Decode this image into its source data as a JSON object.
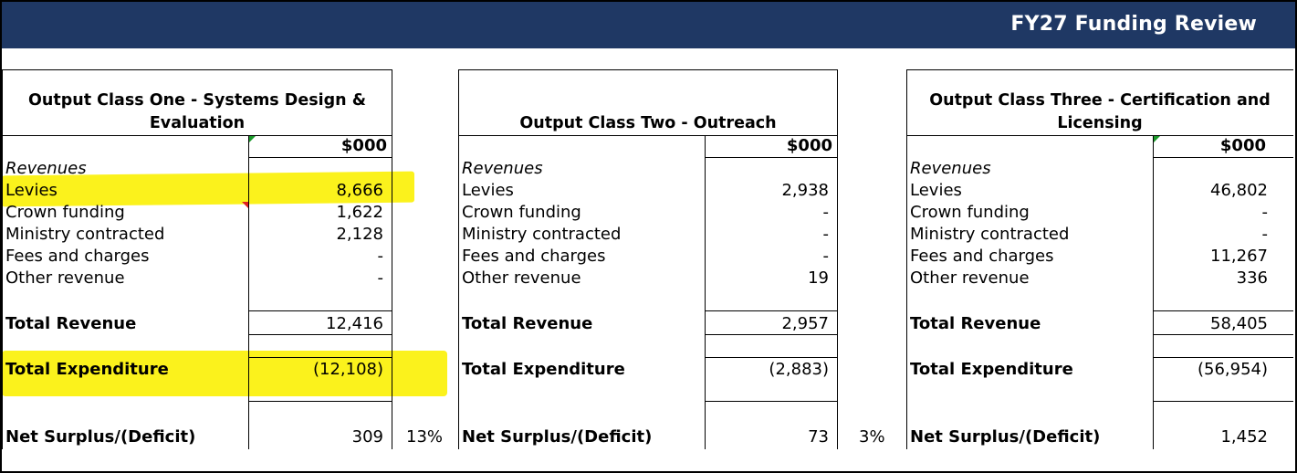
{
  "title": "FY27 Funding Review",
  "unit_label": "$000",
  "panels": [
    {
      "heading": "Output Class One - Systems Design & Evaluation",
      "revenues_label": "Revenues",
      "rows": [
        {
          "label": "Levies",
          "value": "8,666"
        },
        {
          "label": "Crown funding",
          "value": "1,622"
        },
        {
          "label": "Ministry contracted",
          "value": "2,128"
        },
        {
          "label": "Fees and charges",
          "value": "-"
        },
        {
          "label": "Other revenue",
          "value": "-"
        }
      ],
      "total_revenue": {
        "label": "Total Revenue",
        "value": "12,416"
      },
      "total_expenditure": {
        "label": "Total Expenditure",
        "value": "(12,108)"
      },
      "net": {
        "label": "Net Surplus/(Deficit)",
        "value": "309",
        "percent": "13%"
      }
    },
    {
      "heading": "Output Class Two - Outreach",
      "revenues_label": "Revenues",
      "rows": [
        {
          "label": "Levies",
          "value": "2,938"
        },
        {
          "label": "Crown funding",
          "value": "-"
        },
        {
          "label": "Ministry contracted",
          "value": "-"
        },
        {
          "label": "Fees and charges",
          "value": "-"
        },
        {
          "label": "Other revenue",
          "value": "19"
        }
      ],
      "total_revenue": {
        "label": "Total Revenue",
        "value": "2,957"
      },
      "total_expenditure": {
        "label": "Total Expenditure",
        "value": "(2,883)"
      },
      "net": {
        "label": "Net Surplus/(Deficit)",
        "value": "73",
        "percent": "3%"
      }
    },
    {
      "heading": "Output Class Three - Certification and Licensing",
      "revenues_label": "Revenues",
      "rows": [
        {
          "label": "Levies",
          "value": "46,802"
        },
        {
          "label": "Crown funding",
          "value": "-"
        },
        {
          "label": "Ministry contracted",
          "value": "-"
        },
        {
          "label": "Fees and charges",
          "value": "11,267"
        },
        {
          "label": "Other revenue",
          "value": "336"
        }
      ],
      "total_revenue": {
        "label": "Total Revenue",
        "value": "58,405"
      },
      "total_expenditure": {
        "label": "Total Expenditure",
        "value": "(56,954)"
      },
      "net": {
        "label": "Net Surplus/(Deficit)",
        "value": "1,452"
      }
    }
  ],
  "highlight_color": "#fbf21c",
  "banner_color": "#1f3864"
}
